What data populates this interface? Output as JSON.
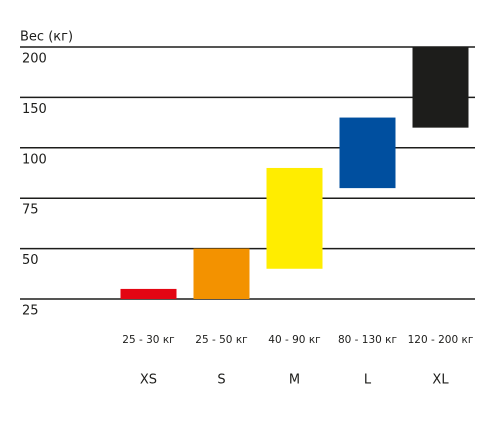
{
  "chart_data": {
    "type": "range_bar",
    "y_label": "Вес (кг)",
    "categories": [
      "XS",
      "S",
      "M",
      "L",
      "XL"
    ],
    "low": [
      25,
      25,
      40,
      80,
      120
    ],
    "high": [
      30,
      50,
      90,
      130,
      200
    ],
    "value_labels": [
      "25 - 30 кг",
      "25 - 50 кг",
      "40 - 90 кг",
      "80 - 130 кг",
      "120 - 200 кг"
    ],
    "colors": [
      "#e30613",
      "#f39200",
      "#ffed00",
      "#004f9f",
      "#1d1d1b"
    ],
    "ylim": [
      25,
      200
    ],
    "yticks": [
      25,
      50,
      75,
      100,
      150,
      200
    ],
    "grid": true
  }
}
